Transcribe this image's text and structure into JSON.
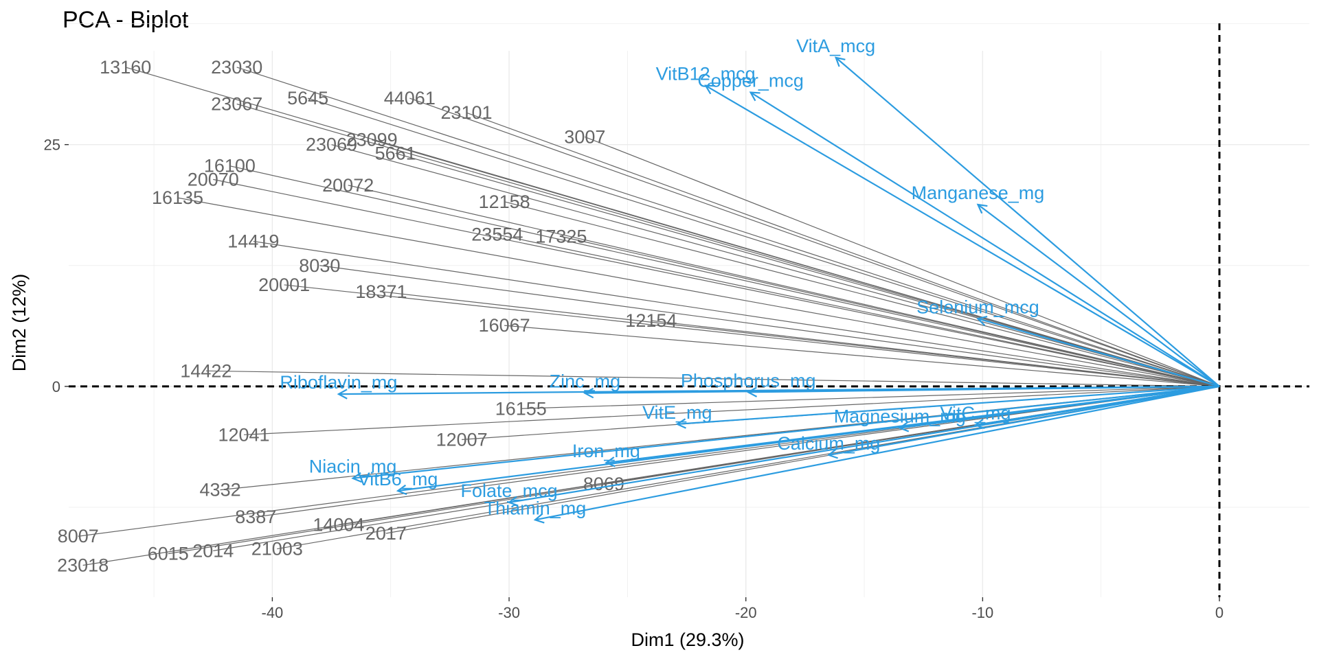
{
  "chart_data": {
    "type": "scatter",
    "title": "PCA - Biplot",
    "xlabel": "Dim1 (29.3%)",
    "ylabel": "Dim2 (12%)",
    "xlim": [
      -48.6,
      3.8
    ],
    "ylim": [
      -21.8,
      34.7
    ],
    "x_ticks": [
      -40,
      -30,
      -20,
      -10,
      0
    ],
    "y_ticks": [
      0,
      25
    ],
    "grid": true,
    "reference_lines": {
      "x": 0,
      "y": 0,
      "style": "dashed"
    },
    "colors": {
      "individuals": "#666666",
      "variables": "#2c9ce0"
    },
    "individuals": [
      {
        "label": "23030",
        "x": -41.5,
        "y": 33.0
      },
      {
        "label": "13160",
        "x": -46.2,
        "y": 33.0
      },
      {
        "label": "23101",
        "x": -31.8,
        "y": 28.3
      },
      {
        "label": "23099",
        "x": -35.8,
        "y": 25.5
      },
      {
        "label": "23067",
        "x": -41.5,
        "y": 29.2
      },
      {
        "label": "23069",
        "x": -37.5,
        "y": 25.0
      },
      {
        "label": "44061",
        "x": -34.2,
        "y": 29.8
      },
      {
        "label": "5645",
        "x": -38.5,
        "y": 29.8
      },
      {
        "label": "5661",
        "x": -34.8,
        "y": 24.1
      },
      {
        "label": "3007",
        "x": -26.8,
        "y": 25.8
      },
      {
        "label": "16100",
        "x": -41.8,
        "y": 22.8
      },
      {
        "label": "20070",
        "x": -42.5,
        "y": 21.4
      },
      {
        "label": "20072",
        "x": -36.8,
        "y": 20.8
      },
      {
        "label": "16135",
        "x": -44.0,
        "y": 19.5
      },
      {
        "label": "12158",
        "x": -30.2,
        "y": 19.1
      },
      {
        "label": "23554",
        "x": -30.5,
        "y": 15.7
      },
      {
        "label": "17325",
        "x": -27.8,
        "y": 15.5
      },
      {
        "label": "14419",
        "x": -40.8,
        "y": 15.0
      },
      {
        "label": "8030",
        "x": -38.0,
        "y": 12.5
      },
      {
        "label": "20001",
        "x": -39.5,
        "y": 10.5
      },
      {
        "label": "18371",
        "x": -35.4,
        "y": 9.8
      },
      {
        "label": "16067",
        "x": -30.2,
        "y": 6.3
      },
      {
        "label": "14422",
        "x": -42.8,
        "y": 1.6
      },
      {
        "label": "12154",
        "x": -24.0,
        "y": 6.8
      },
      {
        "label": "16155",
        "x": -29.5,
        "y": -2.3
      },
      {
        "label": "12007",
        "x": -32.0,
        "y": -5.5
      },
      {
        "label": "8069",
        "x": -26.0,
        "y": -10.1
      },
      {
        "label": "8387",
        "x": -40.7,
        "y": -13.5
      },
      {
        "label": "14004",
        "x": -37.2,
        "y": -14.3
      },
      {
        "label": "2017",
        "x": -35.2,
        "y": -15.2
      },
      {
        "label": "21003",
        "x": -39.8,
        "y": -16.8
      },
      {
        "label": "8007",
        "x": -48.2,
        "y": -15.5
      },
      {
        "label": "23018",
        "x": -48.0,
        "y": -18.5
      },
      {
        "label": "6015",
        "x": -44.4,
        "y": -17.3
      },
      {
        "label": "2014",
        "x": -42.5,
        "y": -17.0
      },
      {
        "label": "12041",
        "x": -41.2,
        "y": -5.0
      },
      {
        "label": "4332",
        "x": -42.2,
        "y": -10.7
      }
    ],
    "variables": [
      {
        "name": "VitA_mcg",
        "x": -16.2,
        "y": 34.0
      },
      {
        "name": "VitB12_mcg",
        "x": -21.7,
        "y": 31.1
      },
      {
        "name": "Copper_mcg",
        "x": -19.8,
        "y": 30.4
      },
      {
        "name": "Manganese_mg",
        "x": -10.2,
        "y": 18.8
      },
      {
        "name": "Selenium_mcg",
        "x": -10.2,
        "y": 7.0
      },
      {
        "name": "Phosphorus_mg",
        "x": -19.9,
        "y": -0.6
      },
      {
        "name": "Zinc_mg",
        "x": -26.8,
        "y": -0.7
      },
      {
        "name": "Riboflavin_mg",
        "x": -37.2,
        "y": -0.8
      },
      {
        "name": "VitE_mg",
        "x": -22.9,
        "y": -3.9
      },
      {
        "name": "VitC_mg",
        "x": -10.3,
        "y": -4.0
      },
      {
        "name": "Magnesium_mg",
        "x": -13.5,
        "y": -4.3
      },
      {
        "name": "Iron_mg",
        "x": -25.9,
        "y": -7.9
      },
      {
        "name": "Calcium_mg",
        "x": -16.5,
        "y": -7.1
      },
      {
        "name": "Niacin_mg",
        "x": -36.6,
        "y": -9.5
      },
      {
        "name": "VitB6_mg",
        "x": -34.7,
        "y": -10.8
      },
      {
        "name": "Folate_mcg",
        "x": -30.0,
        "y": -12.0
      },
      {
        "name": "Thiamin_mg",
        "x": -28.9,
        "y": -13.8
      }
    ]
  }
}
